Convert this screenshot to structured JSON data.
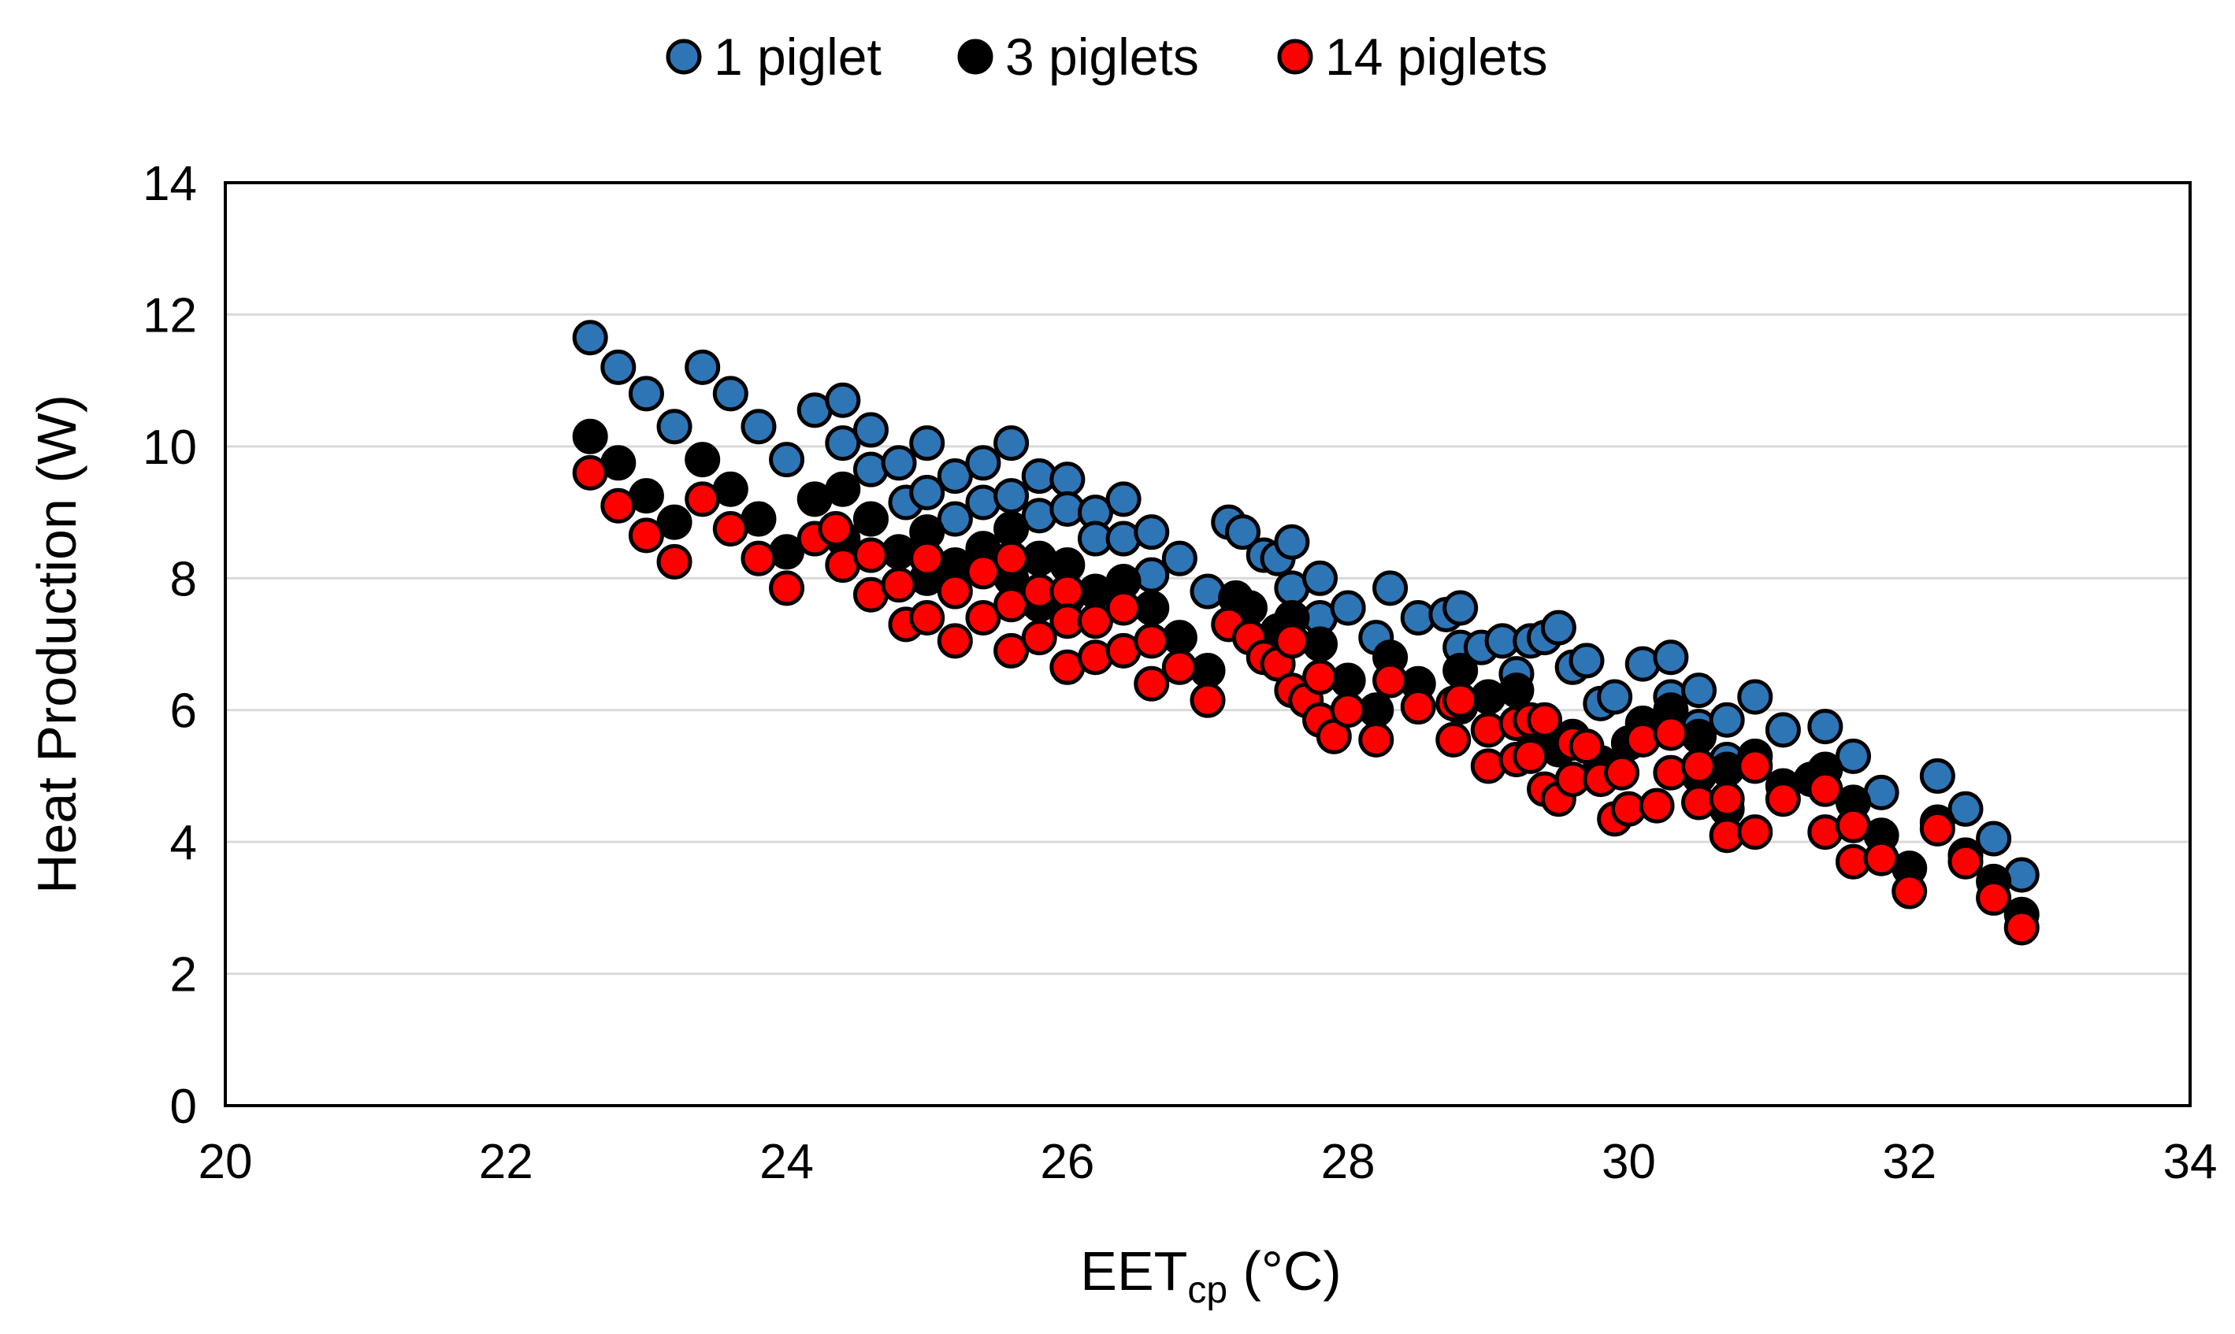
{
  "chart_data": {
    "type": "scatter",
    "xlabel": {
      "main": "EET",
      "sub": "cp",
      "unit": " (°C)"
    },
    "ylabel": "Heat Production (W)",
    "xlim": [
      20,
      34
    ],
    "ylim": [
      0,
      14
    ],
    "x_ticks": [
      "20",
      "22",
      "24",
      "26",
      "28",
      "30",
      "32",
      "34"
    ],
    "y_ticks": [
      "0",
      "2",
      "4",
      "6",
      "8",
      "10",
      "12",
      "14"
    ],
    "grid": "horizontal",
    "legend_position": "top",
    "series": [
      {
        "name": "1 piglet",
        "color": "#2e75b6",
        "points": [
          [
            22.6,
            11.65
          ],
          [
            22.8,
            11.2
          ],
          [
            23.0,
            10.8
          ],
          [
            23.2,
            10.3
          ],
          [
            23.4,
            11.2
          ],
          [
            23.6,
            10.8
          ],
          [
            23.8,
            10.3
          ],
          [
            24.0,
            9.8
          ],
          [
            24.2,
            10.55
          ],
          [
            24.4,
            10.7
          ],
          [
            24.4,
            10.05
          ],
          [
            24.6,
            10.25
          ],
          [
            24.6,
            9.65
          ],
          [
            24.8,
            9.75
          ],
          [
            24.85,
            9.15
          ],
          [
            25.0,
            10.05
          ],
          [
            25.0,
            9.3
          ],
          [
            25.2,
            9.55
          ],
          [
            25.2,
            8.9
          ],
          [
            25.4,
            9.75
          ],
          [
            25.4,
            9.15
          ],
          [
            25.6,
            10.05
          ],
          [
            25.6,
            9.25
          ],
          [
            25.8,
            9.55
          ],
          [
            25.8,
            8.95
          ],
          [
            26.0,
            9.5
          ],
          [
            26.0,
            9.05
          ],
          [
            26.2,
            9.0
          ],
          [
            26.2,
            8.6
          ],
          [
            26.4,
            9.2
          ],
          [
            26.4,
            8.6
          ],
          [
            26.6,
            8.7
          ],
          [
            26.6,
            8.05
          ],
          [
            26.8,
            8.3
          ],
          [
            27.0,
            7.8
          ],
          [
            27.15,
            8.85
          ],
          [
            27.25,
            8.7
          ],
          [
            27.4,
            8.35
          ],
          [
            27.5,
            8.3
          ],
          [
            27.6,
            8.55
          ],
          [
            27.6,
            7.85
          ],
          [
            27.8,
            8.0
          ],
          [
            27.8,
            7.4
          ],
          [
            28.0,
            7.55
          ],
          [
            28.2,
            7.1
          ],
          [
            28.3,
            7.85
          ],
          [
            28.5,
            7.4
          ],
          [
            28.7,
            7.45
          ],
          [
            28.8,
            7.55
          ],
          [
            28.8,
            6.95
          ],
          [
            28.95,
            6.95
          ],
          [
            29.1,
            7.05
          ],
          [
            29.2,
            6.55
          ],
          [
            29.3,
            7.05
          ],
          [
            29.4,
            7.1
          ],
          [
            29.5,
            7.25
          ],
          [
            29.6,
            6.65
          ],
          [
            29.7,
            6.75
          ],
          [
            29.8,
            6.1
          ],
          [
            29.9,
            6.2
          ],
          [
            30.1,
            6.7
          ],
          [
            30.3,
            6.8
          ],
          [
            30.3,
            6.2
          ],
          [
            30.5,
            6.3
          ],
          [
            30.5,
            5.75
          ],
          [
            30.7,
            5.85
          ],
          [
            30.7,
            5.25
          ],
          [
            30.9,
            6.2
          ],
          [
            31.1,
            5.7
          ],
          [
            31.4,
            5.75
          ],
          [
            31.6,
            5.3
          ],
          [
            31.8,
            4.75
          ],
          [
            32.2,
            5.0
          ],
          [
            32.4,
            4.5
          ],
          [
            32.6,
            4.05
          ],
          [
            32.8,
            3.5
          ]
        ]
      },
      {
        "name": "3 piglets",
        "color": "#000000",
        "points": [
          [
            22.6,
            10.15
          ],
          [
            22.8,
            9.75
          ],
          [
            23.0,
            9.25
          ],
          [
            23.2,
            8.85
          ],
          [
            23.4,
            9.8
          ],
          [
            23.6,
            9.35
          ],
          [
            23.8,
            8.9
          ],
          [
            24.0,
            8.4
          ],
          [
            24.2,
            9.2
          ],
          [
            24.4,
            9.35
          ],
          [
            24.4,
            8.6
          ],
          [
            24.6,
            8.9
          ],
          [
            24.6,
            8.35
          ],
          [
            24.8,
            8.4
          ],
          [
            25.0,
            8.7
          ],
          [
            25.0,
            8.0
          ],
          [
            25.2,
            8.2
          ],
          [
            25.4,
            8.45
          ],
          [
            25.6,
            8.75
          ],
          [
            25.6,
            8.0
          ],
          [
            25.8,
            8.3
          ],
          [
            25.8,
            7.6
          ],
          [
            26.0,
            8.2
          ],
          [
            26.0,
            7.7
          ],
          [
            26.2,
            7.8
          ],
          [
            26.4,
            7.95
          ],
          [
            26.6,
            7.55
          ],
          [
            26.8,
            7.1
          ],
          [
            27.0,
            6.6
          ],
          [
            27.2,
            7.7
          ],
          [
            27.3,
            7.55
          ],
          [
            27.5,
            7.2
          ],
          [
            27.6,
            7.4
          ],
          [
            27.8,
            7.0
          ],
          [
            28.0,
            6.45
          ],
          [
            28.2,
            6.0
          ],
          [
            28.3,
            6.8
          ],
          [
            28.5,
            6.4
          ],
          [
            28.8,
            6.6
          ],
          [
            28.8,
            6.05
          ],
          [
            29.0,
            6.2
          ],
          [
            29.2,
            6.3
          ],
          [
            29.3,
            5.7
          ],
          [
            29.5,
            5.4
          ],
          [
            29.6,
            5.6
          ],
          [
            29.8,
            5.2
          ],
          [
            30.0,
            5.5
          ],
          [
            30.1,
            5.8
          ],
          [
            30.3,
            6.0
          ],
          [
            30.5,
            5.6
          ],
          [
            30.5,
            5.0
          ],
          [
            30.7,
            5.1
          ],
          [
            30.7,
            4.5
          ],
          [
            30.9,
            5.3
          ],
          [
            31.1,
            4.85
          ],
          [
            31.3,
            4.95
          ],
          [
            31.4,
            5.1
          ],
          [
            31.6,
            4.6
          ],
          [
            31.8,
            4.1
          ],
          [
            32.0,
            3.6
          ],
          [
            32.2,
            4.3
          ],
          [
            32.4,
            3.8
          ],
          [
            32.6,
            3.4
          ],
          [
            32.8,
            2.9
          ]
        ]
      },
      {
        "name": "14 piglets",
        "color": "#ff0000",
        "points": [
          [
            22.6,
            9.6
          ],
          [
            22.8,
            9.1
          ],
          [
            23.0,
            8.65
          ],
          [
            23.2,
            8.25
          ],
          [
            23.4,
            9.2
          ],
          [
            23.6,
            8.75
          ],
          [
            23.8,
            8.3
          ],
          [
            24.0,
            7.85
          ],
          [
            24.2,
            8.6
          ],
          [
            24.35,
            8.75
          ],
          [
            24.4,
            8.2
          ],
          [
            24.6,
            8.35
          ],
          [
            24.6,
            7.75
          ],
          [
            24.8,
            7.9
          ],
          [
            24.85,
            7.3
          ],
          [
            25.0,
            8.3
          ],
          [
            25.0,
            7.4
          ],
          [
            25.2,
            7.8
          ],
          [
            25.2,
            7.05
          ],
          [
            25.4,
            8.1
          ],
          [
            25.4,
            7.4
          ],
          [
            25.6,
            8.3
          ],
          [
            25.6,
            7.6
          ],
          [
            25.6,
            6.9
          ],
          [
            25.8,
            7.8
          ],
          [
            25.8,
            7.1
          ],
          [
            26.0,
            7.8
          ],
          [
            26.0,
            7.35
          ],
          [
            26.0,
            6.65
          ],
          [
            26.2,
            7.35
          ],
          [
            26.2,
            6.8
          ],
          [
            26.4,
            7.55
          ],
          [
            26.4,
            6.9
          ],
          [
            26.6,
            7.05
          ],
          [
            26.6,
            6.4
          ],
          [
            26.8,
            6.65
          ],
          [
            27.0,
            6.15
          ],
          [
            27.15,
            7.3
          ],
          [
            27.3,
            7.1
          ],
          [
            27.4,
            6.8
          ],
          [
            27.5,
            6.7
          ],
          [
            27.6,
            7.05
          ],
          [
            27.6,
            6.3
          ],
          [
            27.7,
            6.15
          ],
          [
            27.8,
            6.5
          ],
          [
            27.8,
            5.85
          ],
          [
            27.9,
            5.6
          ],
          [
            28.0,
            6.0
          ],
          [
            28.2,
            5.55
          ],
          [
            28.3,
            6.45
          ],
          [
            28.5,
            6.05
          ],
          [
            28.75,
            6.1
          ],
          [
            28.75,
            5.55
          ],
          [
            28.8,
            6.15
          ],
          [
            29.0,
            5.7
          ],
          [
            29.0,
            5.15
          ],
          [
            29.2,
            5.8
          ],
          [
            29.2,
            5.25
          ],
          [
            29.3,
            5.85
          ],
          [
            29.3,
            5.3
          ],
          [
            29.4,
            5.85
          ],
          [
            29.4,
            4.8
          ],
          [
            29.5,
            4.65
          ],
          [
            29.6,
            5.5
          ],
          [
            29.6,
            4.95
          ],
          [
            29.7,
            5.45
          ],
          [
            29.8,
            4.95
          ],
          [
            29.9,
            4.35
          ],
          [
            29.95,
            5.05
          ],
          [
            30.0,
            4.5
          ],
          [
            30.1,
            5.55
          ],
          [
            30.2,
            4.55
          ],
          [
            30.3,
            5.65
          ],
          [
            30.3,
            5.05
          ],
          [
            30.5,
            5.15
          ],
          [
            30.5,
            4.6
          ],
          [
            30.7,
            4.65
          ],
          [
            30.7,
            4.1
          ],
          [
            30.9,
            5.15
          ],
          [
            30.9,
            4.15
          ],
          [
            31.1,
            4.65
          ],
          [
            31.4,
            4.8
          ],
          [
            31.4,
            4.15
          ],
          [
            31.6,
            4.25
          ],
          [
            31.6,
            3.7
          ],
          [
            31.8,
            3.75
          ],
          [
            32.0,
            3.25
          ],
          [
            32.2,
            4.2
          ],
          [
            32.4,
            3.7
          ],
          [
            32.6,
            3.15
          ],
          [
            32.8,
            2.7
          ]
        ]
      }
    ]
  }
}
